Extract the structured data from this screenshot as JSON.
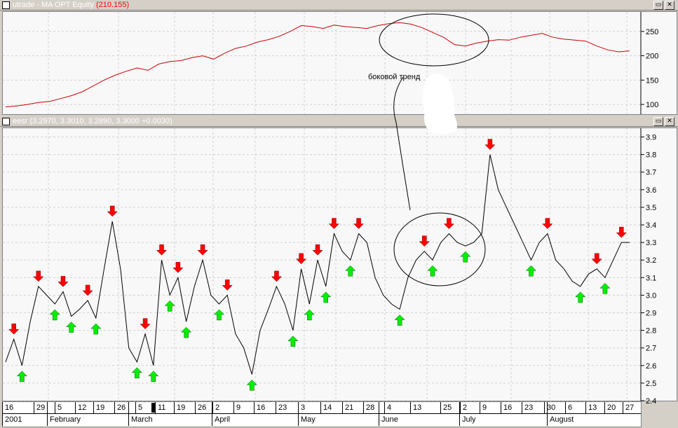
{
  "top_pane": {
    "title_prefix": "utrade - MA OPT Equity",
    "title_value": "(210.155)",
    "buttons": [
      "▭",
      "✕"
    ]
  },
  "bottom_pane": {
    "title": "eesr (3.2970, 3.3010, 3.2890, 3.3000 +0.0030)",
    "buttons": [
      "▭",
      "✕"
    ]
  },
  "annotation_text": "боковой тренд",
  "colors": {
    "equity_line": "#cc0000",
    "price_line": "#000000",
    "sell_arrow": "#ff0000",
    "buy_arrow": "#00ee00",
    "title_value": "#ff0000"
  },
  "time_axis": {
    "days": [
      "16",
      "29",
      "5",
      "12",
      "19",
      "26",
      "5",
      "11",
      "19",
      "26",
      "2",
      "9",
      "16",
      "23",
      "3",
      "14",
      "21",
      "28",
      "4",
      "13",
      "25",
      "2",
      "9",
      "16",
      "23",
      "30",
      "6",
      "13",
      "20",
      "27"
    ],
    "months": [
      "2001",
      "February",
      "March",
      "April",
      "May",
      "June",
      "July",
      "August"
    ]
  },
  "chart_data": [
    {
      "type": "line",
      "series": [
        {
          "values": [
            95,
            97,
            100,
            104,
            106,
            112,
            118,
            126,
            138,
            150,
            160,
            168,
            175,
            170,
            183,
            188,
            190,
            196,
            200,
            193,
            205,
            215,
            220,
            228,
            233,
            240,
            250,
            262,
            260,
            256,
            263,
            260,
            258,
            256,
            262,
            266,
            268,
            265,
            258,
            248,
            238,
            223,
            220,
            226,
            230,
            233,
            232,
            238,
            242,
            246,
            238,
            234,
            232,
            230,
            220,
            212,
            208,
            210
          ]
        }
      ],
      "ylim": [
        80,
        290
      ],
      "yticks": [
        "250",
        "200",
        "150",
        "100"
      ]
    },
    {
      "type": "line",
      "series": [
        {
          "values": [
            2.62,
            2.75,
            2.6,
            2.85,
            3.05,
            3.0,
            2.95,
            3.02,
            2.88,
            2.92,
            2.97,
            2.87,
            3.15,
            3.42,
            3.15,
            2.7,
            2.62,
            2.78,
            2.6,
            3.2,
            3.0,
            3.1,
            2.85,
            3.05,
            3.2,
            3.0,
            2.95,
            3.0,
            2.78,
            2.7,
            2.55,
            2.8,
            2.92,
            3.05,
            2.95,
            2.8,
            3.15,
            2.95,
            3.2,
            3.05,
            3.35,
            3.25,
            3.2,
            3.35,
            3.3,
            3.1,
            3.0,
            2.95,
            2.92,
            3.1,
            3.2,
            3.25,
            3.2,
            3.3,
            3.35,
            3.3,
            3.28,
            3.3,
            3.35,
            3.8,
            3.6,
            3.5,
            3.4,
            3.3,
            3.2,
            3.3,
            3.35,
            3.2,
            3.15,
            3.08,
            3.05,
            3.12,
            3.15,
            3.1,
            3.2,
            3.3,
            3.3
          ]
        }
      ],
      "ylim": [
        2.4,
        3.95
      ],
      "yticks": [
        "3.9",
        "3.8",
        "3.7",
        "3.6",
        "3.5",
        "3.4",
        "3.3",
        "3.2",
        "3.1",
        "3.0",
        "2.9",
        "2.8",
        "2.7",
        "2.6",
        "2.5",
        "2.4"
      ]
    }
  ]
}
